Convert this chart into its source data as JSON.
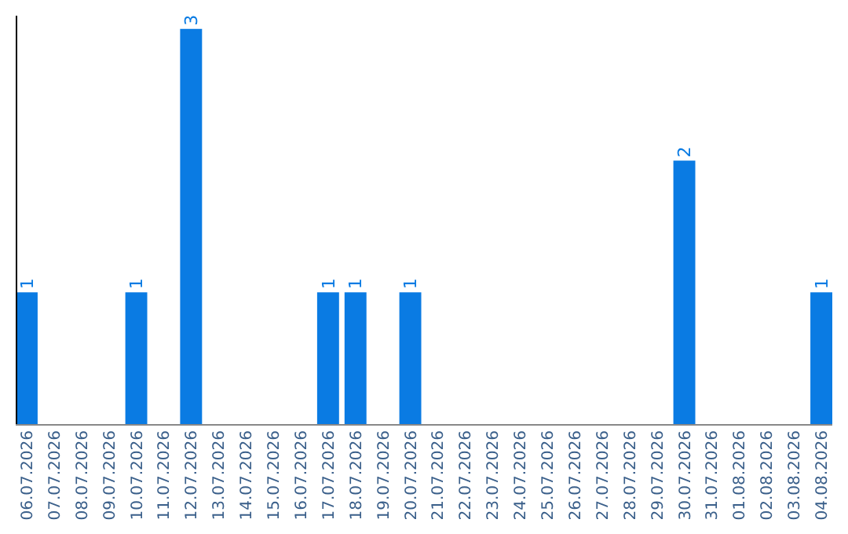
{
  "chart_data": {
    "type": "bar",
    "categories": [
      "06.07.2026",
      "07.07.2026",
      "08.07.2026",
      "09.07.2026",
      "10.07.2026",
      "11.07.2026",
      "12.07.2026",
      "13.07.2026",
      "14.07.2026",
      "15.07.2026",
      "16.07.2026",
      "17.07.2026",
      "18.07.2026",
      "19.07.2026",
      "20.07.2026",
      "21.07.2026",
      "22.07.2026",
      "23.07.2026",
      "24.07.2026",
      "25.07.2026",
      "26.07.2026",
      "27.07.2026",
      "28.07.2026",
      "29.07.2026",
      "30.07.2026",
      "31.07.2026",
      "01.08.2026",
      "02.08.2026",
      "03.08.2026",
      "04.08.2026"
    ],
    "values": [
      1,
      0,
      0,
      0,
      1,
      0,
      3,
      0,
      0,
      0,
      0,
      1,
      1,
      0,
      1,
      0,
      0,
      0,
      0,
      0,
      0,
      0,
      0,
      0,
      2,
      0,
      0,
      0,
      0,
      1
    ],
    "value_labels": [
      "1",
      null,
      null,
      null,
      "1",
      null,
      "3",
      null,
      null,
      null,
      null,
      "1",
      "1",
      null,
      "1",
      null,
      null,
      null,
      null,
      null,
      null,
      null,
      null,
      null,
      "2",
      null,
      null,
      null,
      null,
      "1"
    ],
    "color": "#0a7be3",
    "ylim": [
      0,
      3.1
    ],
    "tick_labels": "x"
  }
}
